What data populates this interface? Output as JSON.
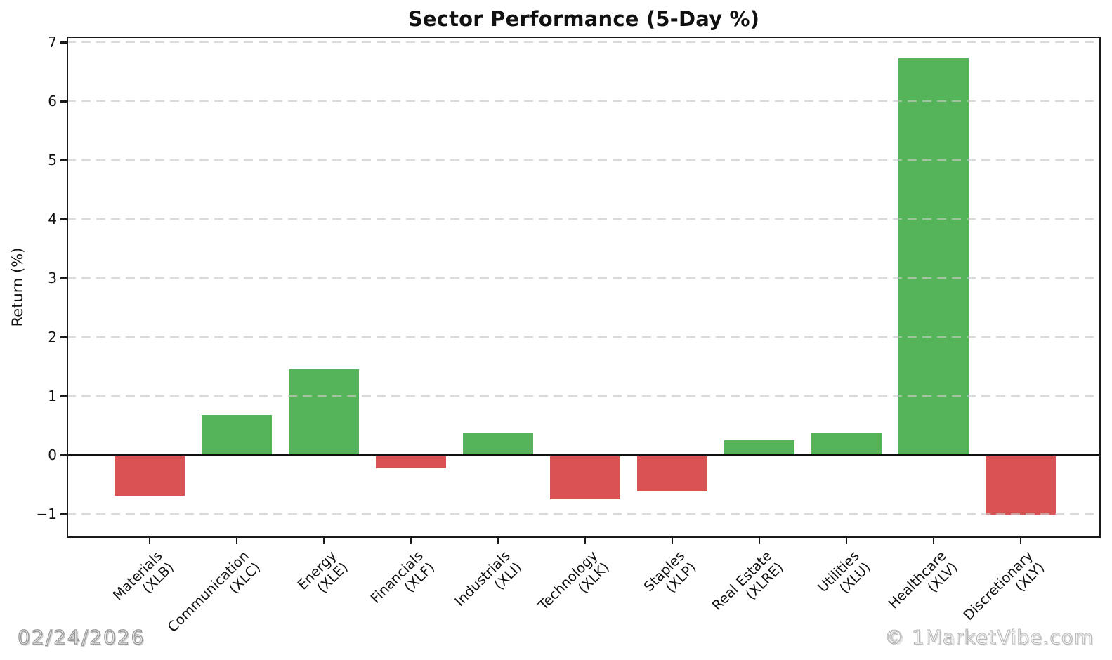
{
  "header": {
    "title": "Sector Performance (5-Day %)"
  },
  "footer": {
    "date": "02/24/2026",
    "credit": "© 1MarketVibe.com"
  },
  "chart_data": {
    "type": "bar",
    "title": "Sector Performance (5-Day %)",
    "xlabel": "",
    "ylabel": "Return (%)",
    "ylim": [
      -1.4,
      7.1
    ],
    "yticks": [
      -1,
      0,
      1,
      2,
      3,
      4,
      5,
      6,
      7
    ],
    "grid": "horizontal dashed gridlines at integer values",
    "legend": "none",
    "bar_colors": {
      "positive": "#55b45a",
      "negative": "#d95355"
    },
    "categories": [
      "Materials (XLB)",
      "Communication (XLC)",
      "Energy (XLE)",
      "Financials (XLF)",
      "Industrials (XLI)",
      "Technology (XLK)",
      "Staples (XLP)",
      "Real Estate (XLRE)",
      "Utilities (XLU)",
      "Healthcare (XLV)",
      "Discretionary (XLY)"
    ],
    "values": [
      -0.68,
      0.68,
      1.46,
      -0.22,
      0.38,
      -0.74,
      -0.61,
      0.25,
      0.38,
      6.73,
      -1.01
    ],
    "sectors": [
      {
        "name": "Materials",
        "ticker": "XLB",
        "value": -0.68
      },
      {
        "name": "Communication",
        "ticker": "XLC",
        "value": 0.68
      },
      {
        "name": "Energy",
        "ticker": "XLE",
        "value": 1.46
      },
      {
        "name": "Financials",
        "ticker": "XLF",
        "value": -0.22
      },
      {
        "name": "Industrials",
        "ticker": "XLI",
        "value": 0.38
      },
      {
        "name": "Technology",
        "ticker": "XLK",
        "value": -0.74
      },
      {
        "name": "Staples",
        "ticker": "XLP",
        "value": -0.61
      },
      {
        "name": "Real Estate",
        "ticker": "XLRE",
        "value": 0.25
      },
      {
        "name": "Utilities",
        "ticker": "XLU",
        "value": 0.38
      },
      {
        "name": "Healthcare",
        "ticker": "XLV",
        "value": 6.73
      },
      {
        "name": "Discretionary",
        "ticker": "XLY",
        "value": -1.01
      }
    ]
  }
}
